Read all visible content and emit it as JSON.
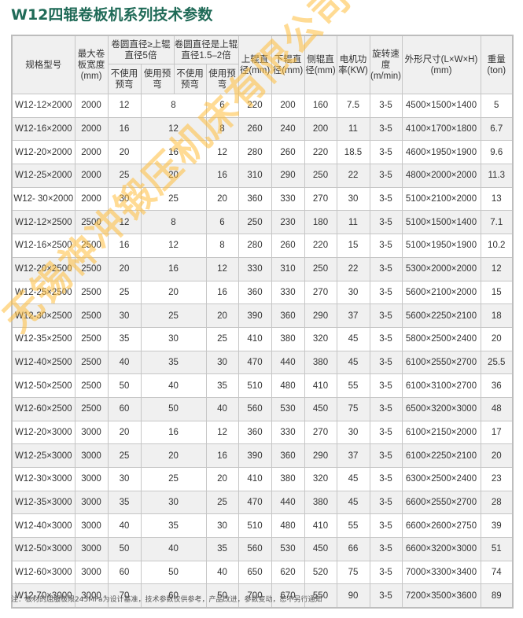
{
  "title": "W12四辊卷板机系列技术参数",
  "header": {
    "model": "规格型号",
    "max_width": "最大卷板宽度(mm)",
    "group1": "卷圆直径≥上辊直径5倍",
    "group2": "卷圆直径是上辊直径1.5–2倍",
    "no_prebend": "不使用预弯",
    "prebend": "使用预弯",
    "upper_roll": "上辊直径(mm)",
    "lower_roll": "下辊直径(mm)",
    "side_roll": "侧辊直径(mm)",
    "motor": "电机功率(KW)",
    "speed": "旋转速度(m/min)",
    "dimensions": "外形尺寸(L×W×H)(mm)",
    "weight": "重量(ton)"
  },
  "rows": [
    [
      "W12-12×2000",
      "2000",
      "12",
      "8",
      "6",
      "220",
      "200",
      "160",
      "7.5",
      "3-5",
      "4500×1500×1400",
      "5"
    ],
    [
      "W12-16×2000",
      "2000",
      "16",
      "12",
      "8",
      "260",
      "240",
      "200",
      "11",
      "3-5",
      "4100×1700×1800",
      "6.7"
    ],
    [
      "W12-20×2000",
      "2000",
      "20",
      "16",
      "12",
      "280",
      "260",
      "220",
      "18.5",
      "3-5",
      "4600×1950×1900",
      "9.6"
    ],
    [
      "W12-25×2000",
      "2000",
      "25",
      "20",
      "16",
      "310",
      "290",
      "250",
      "22",
      "3-5",
      "4800×2000×2000",
      "11.3"
    ],
    [
      "W12- 30×2000",
      "2000",
      "30",
      "25",
      "20",
      "360",
      "330",
      "270",
      "30",
      "3-5",
      "5100×2100×2000",
      "13"
    ],
    [
      "W12-12×2500",
      "2500",
      "12",
      "8",
      "6",
      "250",
      "230",
      "180",
      "11",
      "3-5",
      "5100×1500×1400",
      "7.1"
    ],
    [
      "W12-16×2500",
      "2500",
      "16",
      "12",
      "8",
      "280",
      "260",
      "220",
      "15",
      "3-5",
      "5100×1950×1900",
      "10.2"
    ],
    [
      "W12-20×2500",
      "2500",
      "20",
      "16",
      "12",
      "330",
      "310",
      "250",
      "22",
      "3-5",
      "5300×2000×2000",
      "12"
    ],
    [
      "W12-25×2500",
      "2500",
      "25",
      "20",
      "16",
      "360",
      "330",
      "270",
      "30",
      "3-5",
      "5600×2100×2000",
      "15"
    ],
    [
      "W12-30×2500",
      "2500",
      "30",
      "25",
      "20",
      "390",
      "360",
      "290",
      "37",
      "3-5",
      "5600×2250×2100",
      "18"
    ],
    [
      "W12-35×2500",
      "2500",
      "35",
      "30",
      "25",
      "410",
      "380",
      "320",
      "45",
      "3-5",
      "5800×2500×2400",
      "20"
    ],
    [
      "W12-40×2500",
      "2500",
      "40",
      "35",
      "30",
      "470",
      "440",
      "380",
      "45",
      "3-5",
      "6100×2550×2700",
      "25.5"
    ],
    [
      "W12-50×2500",
      "2500",
      "50",
      "40",
      "35",
      "510",
      "480",
      "410",
      "55",
      "3-5",
      "6100×3100×2700",
      "36"
    ],
    [
      "W12-60×2500",
      "2500",
      "60",
      "50",
      "40",
      "560",
      "530",
      "450",
      "75",
      "3-5",
      "6500×3200×3000",
      "48"
    ],
    [
      "W12-20×3000",
      "3000",
      "20",
      "16",
      "12",
      "360",
      "330",
      "270",
      "30",
      "3-5",
      "6100×2150×2000",
      "17"
    ],
    [
      "W12-25×3000",
      "3000",
      "25",
      "20",
      "16",
      "390",
      "360",
      "290",
      "37",
      "3-5",
      "6100×2250×2100",
      "20"
    ],
    [
      "W12-30×3000",
      "3000",
      "30",
      "25",
      "20",
      "410",
      "380",
      "320",
      "45",
      "3-5",
      "6300×2500×2400",
      "23"
    ],
    [
      "W12-35×3000",
      "3000",
      "35",
      "30",
      "25",
      "470",
      "440",
      "380",
      "45",
      "3-5",
      "6600×2550×2700",
      "28"
    ],
    [
      "W12-40×3000",
      "3000",
      "40",
      "35",
      "30",
      "510",
      "480",
      "410",
      "55",
      "3-5",
      "6600×2600×2750",
      "39"
    ],
    [
      "W12-50×3000",
      "3000",
      "50",
      "40",
      "35",
      "560",
      "530",
      "450",
      "66",
      "3-5",
      "6600×3200×3000",
      "51"
    ],
    [
      "W12-60×3000",
      "3000",
      "60",
      "50",
      "40",
      "650",
      "620",
      "520",
      "75",
      "3-5",
      "7000×3300×3400",
      "74"
    ],
    [
      "W12-70×3000",
      "3000",
      "70",
      "60",
      "50",
      "700",
      "670",
      "550",
      "90",
      "3-5",
      "7200×3500×3600",
      "89"
    ]
  ],
  "note": "注：板材的屈服极限245MPa为设计基准，技术参数仅供参考，产品改进，参数变动，恕不另行通知",
  "watermark": "无锡神冲锻压机床有限公司",
  "colors": {
    "title": "#1f6a57",
    "watermark": "#ffbe3c"
  }
}
